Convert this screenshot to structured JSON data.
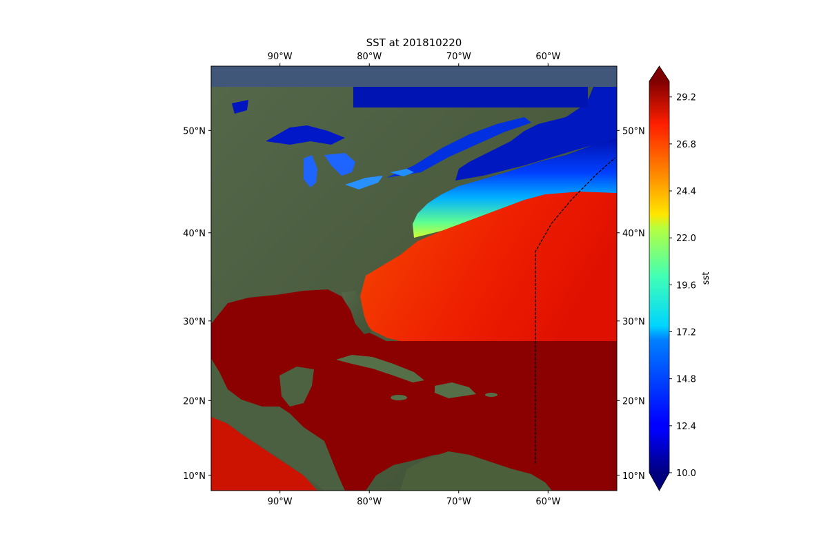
{
  "title": "SST at 201810220",
  "lon_ticks": [
    {
      "label": "90°W",
      "lon": -90
    },
    {
      "label": "80°W",
      "lon": -80
    },
    {
      "label": "70°W",
      "lon": -70
    },
    {
      "label": "60°W",
      "lon": -60
    }
  ],
  "lat_ticks": [
    {
      "label": "50°N",
      "lat": 50
    },
    {
      "label": "40°N",
      "lat": 40
    },
    {
      "label": "30°N",
      "lat": 30
    },
    {
      "label": "20°N",
      "lat": 20
    },
    {
      "label": "10°N",
      "lat": 10
    }
  ],
  "extent": {
    "lon_min": -97.7,
    "lon_max": -52.3,
    "lat_min": 7.9,
    "lat_max": 55.4
  },
  "colorbar": {
    "label": "sst",
    "min": 10.0,
    "max": 30.0,
    "extend": "both",
    "ticks": [
      "10.0",
      "12.4",
      "14.8",
      "17.2",
      "19.6",
      "22.0",
      "24.4",
      "26.8",
      "29.2"
    ],
    "colormap": "jet"
  },
  "track": {
    "style": "dashed",
    "color": "#000000",
    "points": [
      [
        -61.4,
        11.6
      ],
      [
        -61.4,
        38.0
      ],
      [
        -59.6,
        41.0
      ],
      [
        -57.3,
        43.5
      ],
      [
        -54.5,
        46.0
      ],
      [
        -52.5,
        47.5
      ]
    ]
  },
  "colors": {
    "land": "#4a5e3c",
    "warm_sea": "#8b0000",
    "lakes_deep": "#0014c8",
    "lakes_mid": "#1e64ff"
  }
}
